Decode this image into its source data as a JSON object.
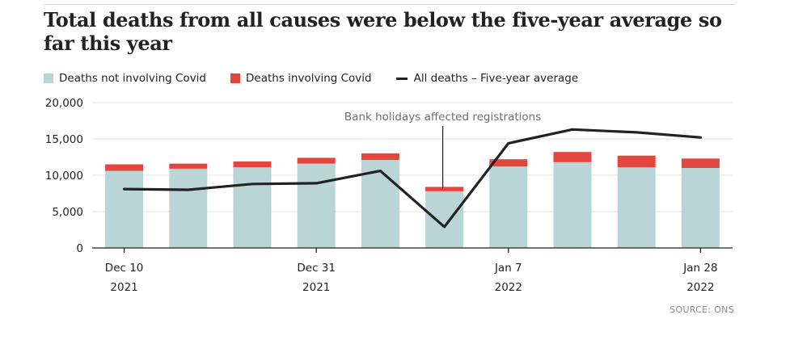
{
  "title": "Total deaths from all causes were below the five-year average so far this year",
  "legend": {
    "not_covid": "Deaths not involving Covid",
    "covid": "Deaths involving Covid",
    "average": "All deaths – Five-year average"
  },
  "annotation": "Bank holidays affected registrations",
  "source": "SOURCE: ONS",
  "colors": {
    "not_covid": "#b9d5d6",
    "covid": "#e2463f",
    "average": "#222222",
    "grid": "#e2e2e2",
    "annotation_text": "#6e6e6e"
  },
  "chart_data": {
    "type": "bar",
    "title": "Total deaths from all causes were below the five-year average so far this year",
    "ylim": [
      0,
      20000
    ],
    "yticks": [
      0,
      5000,
      10000,
      15000,
      20000
    ],
    "ytick_labels": [
      "0",
      "5,000",
      "10,000",
      "15,000",
      "20,000"
    ],
    "x_tick_labels": [
      {
        "index": 0,
        "line1": "Dec 10",
        "line2": "2021"
      },
      {
        "index": 3,
        "line1": "Dec 31",
        "line2": "2021"
      },
      {
        "index": 6,
        "line1": "Jan 7",
        "line2": "2022"
      },
      {
        "index": 9,
        "line1": "Jan 28",
        "line2": "2022"
      }
    ],
    "series": [
      {
        "name": "Deaths not involving Covid",
        "kind": "bar",
        "stack": "deaths",
        "values": [
          10600,
          10900,
          11100,
          11600,
          12100,
          7800,
          11200,
          11800,
          11100,
          11000
        ]
      },
      {
        "name": "Deaths involving Covid",
        "kind": "bar",
        "stack": "deaths",
        "values": [
          900,
          700,
          800,
          800,
          900,
          600,
          1000,
          1400,
          1600,
          1300
        ]
      },
      {
        "name": "All deaths – Five-year average",
        "kind": "line",
        "values": [
          8100,
          8000,
          8800,
          8900,
          10600,
          2900,
          14400,
          16300,
          15900,
          15200
        ]
      }
    ],
    "annotation_index": 5,
    "grid": true,
    "legend_position": "top-left"
  }
}
